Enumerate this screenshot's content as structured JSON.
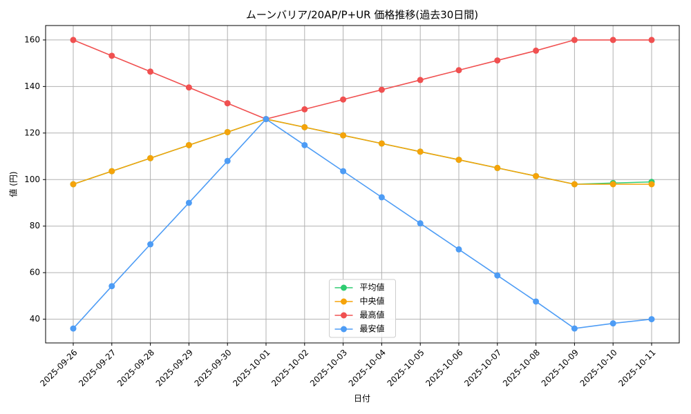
{
  "chart_data": {
    "type": "line",
    "title": "ムーンバリア/20AP/P+UR 価格推移(過去30日間)",
    "x_label": "日付",
    "y_label": "値 (円)",
    "categories": [
      "2025-09-26",
      "2025-09-27",
      "2025-09-28",
      "2025-09-29",
      "2025-09-30",
      "2025-10-01",
      "2025-10-02",
      "2025-10-03",
      "2025-10-04",
      "2025-10-05",
      "2025-10-06",
      "2025-10-07",
      "2025-10-08",
      "2025-10-09",
      "2025-10-10",
      "2025-10-11"
    ],
    "series": [
      {
        "name": "平均値",
        "color": "#2ecc71",
        "values": [
          98,
          103.6,
          109.2,
          114.8,
          120.4,
          126,
          122.5,
          119,
          115.5,
          112,
          108.5,
          105,
          101.5,
          98,
          98.5,
          99
        ]
      },
      {
        "name": "中央値",
        "color": "#f5a30a",
        "values": [
          98,
          103.6,
          109.2,
          114.8,
          120.4,
          126,
          122.5,
          119,
          115.5,
          112,
          108.5,
          105,
          101.5,
          98,
          98,
          98
        ]
      },
      {
        "name": "最高値",
        "color": "#f05050",
        "values": [
          160,
          153.2,
          146.4,
          139.6,
          132.8,
          126,
          130.2,
          134.4,
          138.6,
          142.8,
          147,
          151.2,
          155.4,
          160,
          160,
          160
        ]
      },
      {
        "name": "最安値",
        "color": "#4d9cf5",
        "values": [
          36,
          54.2,
          72.2,
          90,
          108,
          126,
          114.8,
          103.6,
          92.4,
          81.2,
          70,
          58.8,
          47.6,
          36,
          38.2,
          40
        ]
      }
    ],
    "ylim": [
      29.8,
      166.2
    ],
    "yticks": [
      40,
      60,
      80,
      100,
      120,
      140,
      160
    ],
    "grid": true,
    "legend": "lower center"
  }
}
